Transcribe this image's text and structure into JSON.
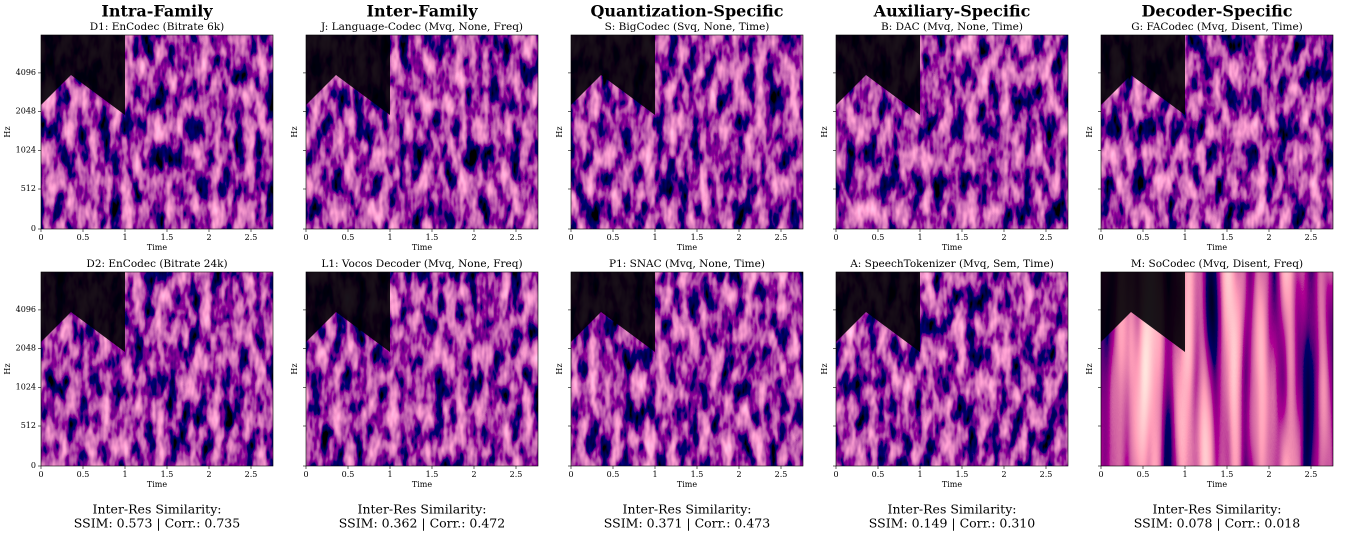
{
  "columns": [
    {
      "heading": "Intra-Family",
      "top_title": "D1: EnCodec (Bitrate 6k)",
      "bottom_title": "D2: EnCodec (Bitrate 24k)",
      "similarity_label": "Inter-Res Similarity:",
      "similarity": "SSIM: 0.573 | Corr.: 0.735"
    },
    {
      "heading": "Inter-Family",
      "top_title": "J: Language-Codec (Mvq, None, Freq)",
      "bottom_title": "L1: Vocos Decoder (Mvq, None, Freq)",
      "similarity_label": "Inter-Res Similarity:",
      "similarity": "SSIM: 0.362 | Corr.: 0.472"
    },
    {
      "heading": "Quantization-Specific",
      "top_title": "S: BigCodec (Svq, None, Time)",
      "bottom_title": "P1: SNAC (Mvq, None, Time)",
      "similarity_label": "Inter-Res Similarity:",
      "similarity": "SSIM: 0.371 | Corr.: 0.473"
    },
    {
      "heading": "Auxiliary-Specific",
      "top_title": "B: DAC (Mvq, None, Time)",
      "bottom_title": "A: SpeechTokenizer (Mvq, Sem, Time)",
      "similarity_label": "Inter-Res Similarity:",
      "similarity": "SSIM: 0.149 | Corr.: 0.310"
    },
    {
      "heading": "Decoder-Specific",
      "top_title": "G: FACodec (Mvq, Disent, Time)",
      "bottom_title": "M: SoCodec (Mvq, Disent, Freq)",
      "similarity_label": "Inter-Res Similarity:",
      "similarity": "SSIM: 0.078 | Corr.: 0.018"
    }
  ],
  "axes": {
    "x_label": "Time",
    "y_label": "Hz",
    "x_ticks": [
      "0",
      "0.5",
      "1",
      "1.5",
      "2",
      "2.5"
    ],
    "y_ticks": [
      "0",
      "512",
      "1024",
      "2048",
      "4096"
    ]
  }
}
